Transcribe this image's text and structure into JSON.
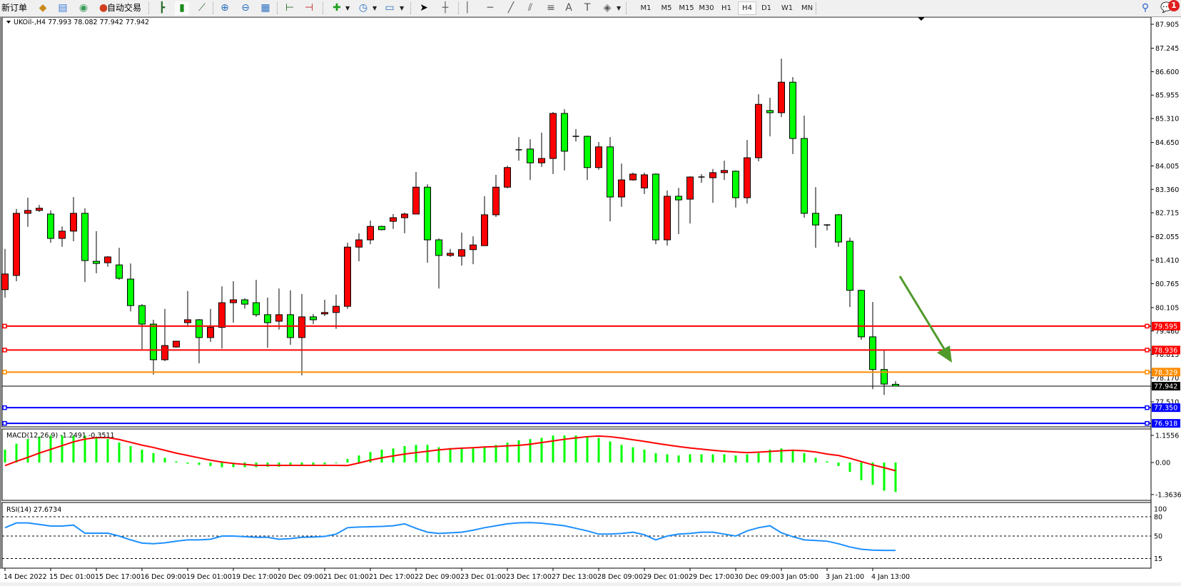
{
  "toolbar": {
    "new_order": "新订单",
    "auto_trading": "自动交易",
    "icons": [
      "navigator-icon",
      "terminal-icon",
      "signals-icon",
      "auto-trading-icon",
      "bar-chart-icon",
      "candlestick-icon",
      "line-chart-icon",
      "zoom-in-icon",
      "zoom-out-icon",
      "tile-windows-icon",
      "chart-shift-icon",
      "autoscroll-icon",
      "indicators-icon",
      "periods-icon",
      "templates-icon",
      "cursor-icon",
      "crosshair-icon",
      "vertical-line-icon",
      "horizontal-line-icon",
      "trendline-icon",
      "equidistant-channel-icon",
      "fibonacci-icon",
      "text-icon",
      "text-label-icon",
      "shapes-icon",
      "search-icon",
      "notifications-icon"
    ],
    "timeframes": [
      "M1",
      "M5",
      "M15",
      "M30",
      "H1",
      "H4",
      "D1",
      "W1",
      "MN"
    ],
    "active_timeframe": "H4",
    "notification_count": "1"
  },
  "colors": {
    "bull_candle": "#ff0000",
    "bear_candle": "#00ff00",
    "macd_histogram": "#00ff00",
    "macd_signal": "#ff0000",
    "rsi_line": "#1e90ff",
    "arrow": "#4f9a2a"
  },
  "chart_data": [
    {
      "type": "candlestick",
      "header": "UKOil-,H4  77.993 78.082 77.942 77.942",
      "y_ticks": [
        "87.905",
        "87.245",
        "86.600",
        "85.955",
        "85.310",
        "84.650",
        "84.005",
        "83.360",
        "82.715",
        "82.055",
        "81.410",
        "80.765",
        "80.105",
        "79.460",
        "78.815",
        "78.170",
        "77.510"
      ],
      "ylim": [
        76.82,
        88.1
      ],
      "x_tick_labels": [
        "14 Dec 2022",
        "15 Dec 01:00",
        "15 Dec 17:00",
        "16 Dec 09:00",
        "19 Dec 01:00",
        "19 Dec 17:00",
        "20 Dec 09:00",
        "21 Dec 01:00",
        "21 Dec 17:00",
        "22 Dec 09:00",
        "23 Dec 01:00",
        "23 Dec 17:00",
        "27 Dec 13:00",
        "28 Dec 09:00",
        "29 Dec 01:00",
        "29 Dec 17:00",
        "30 Dec 09:00",
        "3 Jan 05:00",
        "3 Jan 21:00",
        "4 Jan 13:00"
      ],
      "ohlc": [
        [
          80.6,
          81.72,
          80.38,
          81.03
        ],
        [
          80.99,
          82.82,
          80.83,
          82.7
        ],
        [
          82.7,
          83.13,
          82.33,
          82.78
        ],
        [
          82.78,
          82.93,
          82.74,
          82.84
        ],
        [
          82.68,
          82.78,
          81.89,
          82.01
        ],
        [
          82.01,
          82.34,
          81.78,
          82.21
        ],
        [
          82.21,
          83.15,
          81.93,
          82.7
        ],
        [
          82.7,
          82.84,
          80.81,
          81.4
        ],
        [
          81.38,
          82.21,
          81.05,
          81.32
        ],
        [
          81.34,
          81.52,
          81.23,
          81.5
        ],
        [
          81.28,
          81.75,
          80.87,
          80.91
        ],
        [
          80.89,
          81.32,
          80.0,
          80.16
        ],
        [
          80.16,
          80.2,
          78.96,
          79.65
        ],
        [
          79.65,
          79.77,
          78.26,
          78.67
        ],
        [
          78.67,
          80.07,
          78.63,
          79.06
        ],
        [
          79.02,
          79.18,
          79.0,
          79.18
        ],
        [
          79.69,
          80.56,
          79.57,
          79.77
        ],
        [
          79.77,
          79.79,
          78.57,
          79.28
        ],
        [
          79.28,
          80.07,
          79.16,
          79.56
        ],
        [
          79.56,
          80.69,
          78.98,
          80.24
        ],
        [
          80.24,
          80.83,
          79.69,
          80.32
        ],
        [
          80.32,
          80.36,
          80.08,
          80.2
        ],
        [
          80.24,
          80.87,
          79.85,
          79.91
        ],
        [
          79.91,
          80.38,
          79.0,
          79.69
        ],
        [
          79.73,
          80.63,
          79.5,
          79.91
        ],
        [
          79.91,
          80.58,
          79.08,
          79.28
        ],
        [
          79.28,
          80.48,
          78.24,
          79.85
        ],
        [
          79.85,
          79.93,
          79.65,
          79.77
        ],
        [
          79.93,
          80.32,
          79.87,
          79.97
        ],
        [
          79.97,
          80.46,
          79.52,
          80.14
        ],
        [
          80.14,
          81.89,
          80.07,
          81.77
        ],
        [
          81.77,
          82.15,
          81.38,
          81.97
        ],
        [
          81.97,
          82.5,
          81.85,
          82.34
        ],
        [
          82.34,
          82.36,
          82.23,
          82.25
        ],
        [
          82.48,
          82.68,
          82.27,
          82.58
        ],
        [
          82.58,
          82.72,
          82.15,
          82.68
        ],
        [
          82.68,
          83.84,
          82.68,
          83.42
        ],
        [
          83.42,
          83.5,
          81.34,
          81.97
        ],
        [
          81.97,
          82.01,
          80.63,
          81.54
        ],
        [
          81.54,
          81.72,
          81.5,
          81.6
        ],
        [
          81.52,
          82.17,
          81.26,
          81.7
        ],
        [
          81.7,
          82.07,
          81.3,
          81.83
        ],
        [
          81.81,
          83.17,
          81.81,
          82.66
        ],
        [
          82.66,
          83.76,
          82.6,
          83.42
        ],
        [
          83.42,
          84.01,
          83.39,
          83.96
        ],
        [
          84.45,
          84.8,
          84.15,
          84.45
        ],
        [
          84.47,
          84.74,
          83.62,
          84.09
        ],
        [
          84.09,
          84.92,
          83.98,
          84.21
        ],
        [
          84.21,
          85.49,
          83.78,
          85.45
        ],
        [
          85.45,
          85.57,
          83.88,
          84.41
        ],
        [
          84.82,
          85.02,
          84.68,
          84.82
        ],
        [
          84.82,
          84.84,
          83.62,
          83.96
        ],
        [
          83.96,
          84.66,
          83.9,
          84.53
        ],
        [
          84.53,
          84.8,
          82.48,
          83.15
        ],
        [
          83.15,
          84.07,
          82.88,
          83.62
        ],
        [
          83.62,
          83.82,
          83.6,
          83.78
        ],
        [
          83.4,
          83.82,
          83.23,
          83.76
        ],
        [
          83.78,
          83.8,
          81.85,
          81.97
        ],
        [
          81.97,
          83.33,
          81.81,
          83.17
        ],
        [
          83.17,
          83.4,
          82.13,
          83.07
        ],
        [
          83.09,
          83.72,
          82.42,
          83.7
        ],
        [
          83.7,
          83.78,
          83.54,
          83.7
        ],
        [
          83.68,
          83.92,
          82.99,
          83.82
        ],
        [
          83.82,
          84.15,
          83.62,
          83.88
        ],
        [
          83.86,
          83.88,
          82.86,
          83.13
        ],
        [
          83.13,
          84.72,
          82.97,
          84.23
        ],
        [
          84.23,
          85.98,
          84.13,
          85.7
        ],
        [
          85.53,
          85.88,
          84.82,
          85.47
        ],
        [
          85.47,
          86.96,
          85.35,
          86.31
        ],
        [
          86.31,
          86.45,
          84.33,
          84.76
        ],
        [
          84.76,
          85.39,
          82.58,
          82.7
        ],
        [
          82.7,
          83.42,
          81.75,
          82.38
        ],
        [
          82.38,
          82.4,
          82.23,
          82.38
        ],
        [
          82.66,
          82.68,
          81.78,
          81.91
        ],
        [
          81.93,
          82.03,
          80.12,
          80.58
        ],
        [
          80.58,
          80.6,
          79.22,
          79.3
        ],
        [
          79.3,
          80.26,
          77.86,
          78.4
        ],
        [
          78.4,
          78.92,
          77.7,
          78.0
        ],
        [
          77.993,
          78.082,
          77.942,
          77.942
        ]
      ],
      "horizontal_lines": [
        {
          "price": "79.595",
          "color": "#ff0000"
        },
        {
          "price": "78.936",
          "color": "#ff0000"
        },
        {
          "price": "78.329",
          "color": "#ff8c00"
        },
        {
          "price": "77.350",
          "color": "#0000ff"
        },
        {
          "price": "76.918",
          "color": "#0000ff"
        }
      ],
      "current_price": "77.942",
      "annotation": "down-arrow"
    },
    {
      "type": "bar+line",
      "title": "MACD(12,26,9) -1.2491 -0.3511",
      "y_ticks": [
        "1.1556",
        "0.00",
        "-1.3636"
      ],
      "histogram": [
        0.55,
        0.8,
        1.0,
        1.1,
        1.15,
        1.15,
        1.15,
        1.15,
        1.1,
        1.0,
        0.85,
        0.7,
        0.55,
        0.4,
        0.2,
        0.05,
        -0.05,
        -0.1,
        -0.15,
        -0.2,
        -0.2,
        -0.2,
        -0.2,
        -0.18,
        -0.18,
        -0.15,
        -0.15,
        -0.12,
        -0.08,
        0.0,
        0.15,
        0.3,
        0.45,
        0.55,
        0.6,
        0.7,
        0.75,
        0.75,
        0.65,
        0.62,
        0.6,
        0.6,
        0.65,
        0.75,
        0.85,
        0.95,
        1.0,
        1.05,
        1.15,
        1.15,
        1.15,
        1.1,
        1.05,
        0.9,
        0.75,
        0.65,
        0.55,
        0.4,
        0.35,
        0.3,
        0.35,
        0.35,
        0.35,
        0.35,
        0.3,
        0.35,
        0.4,
        0.55,
        0.6,
        0.55,
        0.4,
        0.2,
        0.05,
        -0.15,
        -0.4,
        -0.75,
        -0.95,
        -1.2,
        -1.25
      ],
      "signal": [
        -0.13,
        0.05,
        0.22,
        0.4,
        0.56,
        0.72,
        0.88,
        1.0,
        1.06,
        1.06,
        0.98,
        0.86,
        0.74,
        0.64,
        0.52,
        0.4,
        0.3,
        0.2,
        0.1,
        0.02,
        -0.04,
        -0.08,
        -0.12,
        -0.12,
        -0.12,
        -0.12,
        -0.12,
        -0.12,
        -0.12,
        -0.12,
        -0.13,
        -0.02,
        0.1,
        0.2,
        0.28,
        0.36,
        0.42,
        0.48,
        0.54,
        0.58,
        0.61,
        0.63,
        0.66,
        0.68,
        0.71,
        0.73,
        0.78,
        0.85,
        0.92,
        0.99,
        1.05,
        1.1,
        1.13,
        1.1,
        1.04,
        0.97,
        0.9,
        0.82,
        0.75,
        0.68,
        0.62,
        0.57,
        0.52,
        0.48,
        0.45,
        0.42,
        0.44,
        0.47,
        0.5,
        0.52,
        0.5,
        0.45,
        0.36,
        0.3,
        0.18,
        0.04,
        -0.1,
        -0.22,
        -0.35
      ],
      "ylim": [
        -1.61,
        1.46
      ]
    },
    {
      "type": "line",
      "title": "RSI(14) 27.6734",
      "y_ticks": [
        "100",
        "80",
        "50",
        "15"
      ],
      "levels": [
        80,
        50,
        15
      ],
      "values": [
        63,
        70.4,
        70.4,
        68,
        65.5,
        65.5,
        67,
        54.4,
        54.4,
        54.4,
        50,
        44,
        39,
        38,
        39.5,
        42,
        44,
        44,
        45,
        50,
        50,
        49,
        48,
        48,
        45,
        46,
        48,
        48.5,
        49.5,
        53,
        63,
        64,
        64.5,
        65,
        66,
        69,
        62,
        56,
        54,
        55,
        56,
        59,
        63,
        66,
        69,
        70.5,
        71,
        70,
        68,
        66,
        62,
        58,
        53,
        53,
        54,
        56,
        52,
        44,
        50,
        53,
        54,
        56,
        56,
        53,
        50,
        58,
        63,
        66,
        55,
        49,
        44,
        43,
        42,
        38,
        33,
        29.5,
        28,
        27.7,
        27.7
      ],
      "ylim": [
        0,
        100
      ]
    }
  ]
}
